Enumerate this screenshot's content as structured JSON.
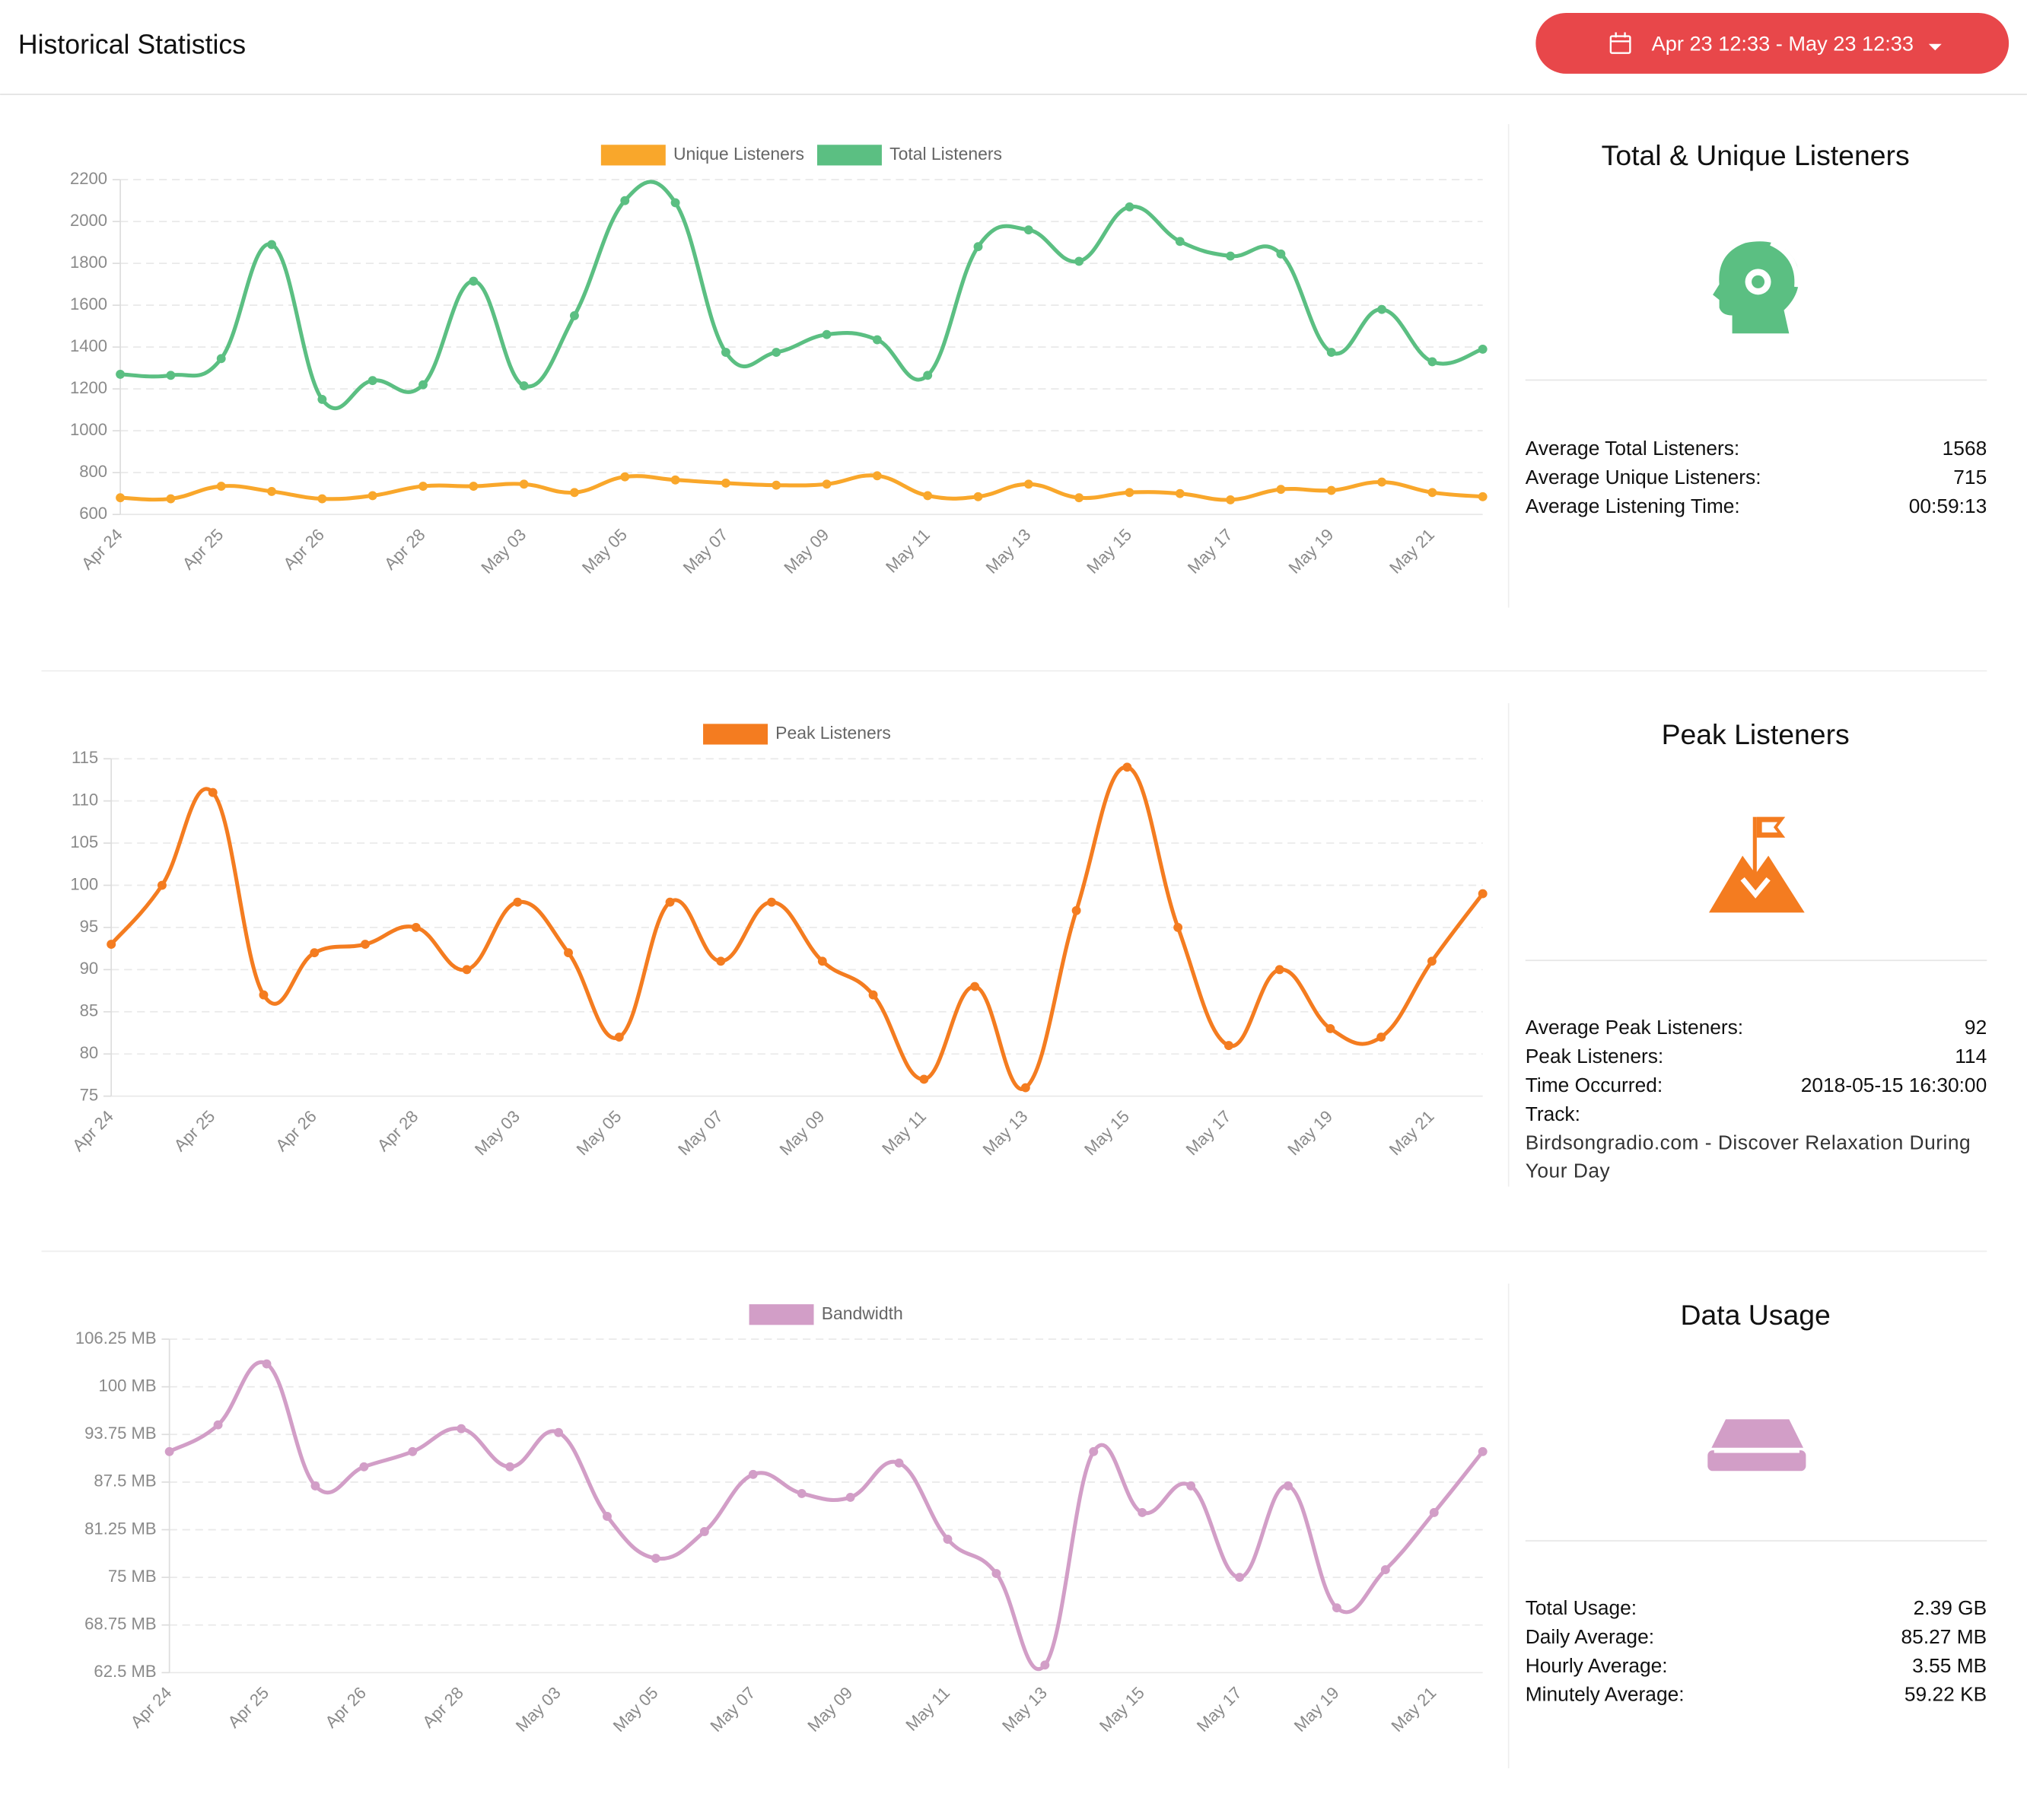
{
  "header": {
    "title": "Historical Statistics",
    "date_range": "Apr 23 12:33 - May 23 12:33"
  },
  "chart_data": [
    {
      "type": "line",
      "categories": [
        "Apr 24",
        null,
        "Apr 25",
        null,
        "Apr 26",
        null,
        "Apr 28",
        null,
        "May 03",
        null,
        "May 05",
        null,
        "May 07",
        null,
        "May 09",
        null,
        "May 11",
        null,
        "May 13",
        null,
        "May 15",
        null,
        "May 17",
        null,
        "May 19",
        null,
        "May 21",
        null
      ],
      "series": [
        {
          "name": "Unique Listeners",
          "color": "#f9a72b",
          "values": [
            680,
            675,
            735,
            710,
            675,
            690,
            735,
            735,
            745,
            705,
            780,
            765,
            750,
            740,
            745,
            785,
            690,
            685,
            745,
            680,
            705,
            700,
            670,
            720,
            715,
            755,
            705,
            685
          ]
        },
        {
          "name": "Total Listeners",
          "color": "#5bbf82",
          "values": [
            1270,
            1265,
            1345,
            1890,
            1150,
            1240,
            1220,
            1715,
            1215,
            1550,
            2100,
            2090,
            1375,
            1375,
            1460,
            1435,
            1265,
            1880,
            1960,
            1810,
            2070,
            1905,
            1835,
            1845,
            1375,
            1580,
            1330,
            1390
          ]
        }
      ],
      "ylim": [
        600,
        2200
      ],
      "yticks": [
        600,
        800,
        1000,
        1200,
        1400,
        1600,
        1800,
        2000,
        2200
      ],
      "grid": true
    },
    {
      "type": "line",
      "categories": [
        "Apr 24",
        null,
        "Apr 25",
        null,
        "Apr 26",
        null,
        "Apr 28",
        null,
        "May 03",
        null,
        "May 05",
        null,
        "May 07",
        null,
        "May 09",
        null,
        "May 11",
        null,
        "May 13",
        null,
        "May 15",
        null,
        "May 17",
        null,
        "May 19",
        null,
        "May 21",
        null
      ],
      "series": [
        {
          "name": "Peak Listeners",
          "color": "#f47c20",
          "values": [
            93,
            100,
            111,
            87,
            92,
            93,
            95,
            90,
            98,
            92,
            82,
            98,
            91,
            98,
            91,
            87,
            77,
            88,
            76,
            97,
            114,
            95,
            81,
            90,
            83,
            82,
            91,
            99
          ]
        }
      ],
      "ylim": [
        75,
        115
      ],
      "yticks": [
        75,
        80,
        85,
        90,
        95,
        100,
        105,
        110,
        115
      ],
      "grid": true
    },
    {
      "type": "line",
      "categories": [
        "Apr 24",
        null,
        "Apr 25",
        null,
        "Apr 26",
        null,
        "Apr 28",
        null,
        "May 03",
        null,
        "May 05",
        null,
        "May 07",
        null,
        "May 09",
        null,
        "May 11",
        null,
        "May 13",
        null,
        "May 15",
        null,
        "May 17",
        null,
        "May 19",
        null,
        "May 21",
        null
      ],
      "series": [
        {
          "name": "Bandwidth",
          "color": "#d29ec7",
          "values": [
            91.5,
            95,
            103,
            87,
            89.5,
            91.5,
            94.5,
            89.5,
            94,
            83,
            77.5,
            81,
            88.5,
            86,
            85.5,
            90,
            80,
            75.5,
            63.5,
            91.5,
            83.5,
            87,
            75,
            87,
            71,
            76,
            83.5,
            91.5
          ]
        }
      ],
      "ylim": [
        62.5,
        106.25
      ],
      "yticks": [
        {
          "value": 62.5,
          "label": "62.5 MB"
        },
        {
          "value": 68.75,
          "label": "68.75 MB"
        },
        {
          "value": 75,
          "label": "75 MB"
        },
        {
          "value": 81.25,
          "label": "81.25 MB"
        },
        {
          "value": 87.5,
          "label": "87.5 MB"
        },
        {
          "value": 93.75,
          "label": "93.75 MB"
        },
        {
          "value": 100,
          "label": "100 MB"
        },
        {
          "value": 106.25,
          "label": "106.25 MB"
        }
      ],
      "grid": true
    }
  ],
  "panels": [
    {
      "title": "Total & Unique Listeners",
      "stats": [
        {
          "label": "Average Total Listeners:",
          "value": "1568"
        },
        {
          "label": "Average Unique Listeners:",
          "value": "715"
        },
        {
          "label": "Average Listening Time:",
          "value": "00:59:13"
        }
      ]
    },
    {
      "title": "Peak Listeners",
      "stats": [
        {
          "label": "Average Peak Listeners:",
          "value": "92"
        },
        {
          "label": "Peak Listeners:",
          "value": "114"
        },
        {
          "label": "Time Occurred:",
          "value": "2018-05-15 16:30:00"
        },
        {
          "label": "Track:",
          "value": ""
        }
      ],
      "track": "Birdsongradio.com - Discover Relaxation During Your Day"
    },
    {
      "title": "Data Usage",
      "stats": [
        {
          "label": "Total Usage:",
          "value": "2.39 GB"
        },
        {
          "label": "Daily Average:",
          "value": "85.27 MB"
        },
        {
          "label": "Hourly Average:",
          "value": "3.55 MB"
        },
        {
          "label": "Minutely Average:",
          "value": "59.22 KB"
        }
      ]
    }
  ]
}
